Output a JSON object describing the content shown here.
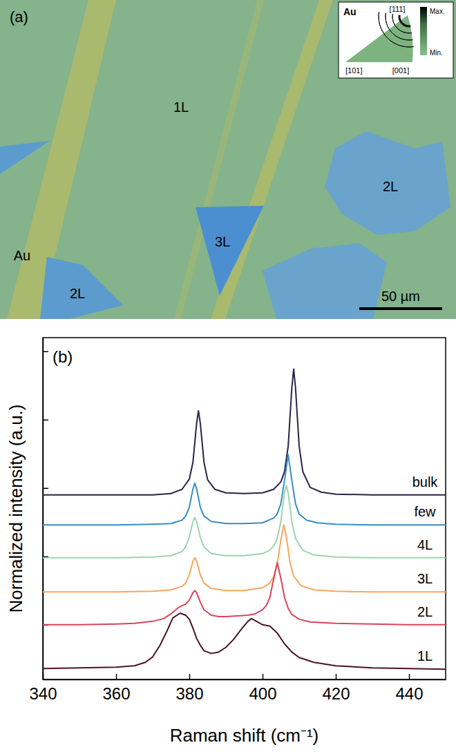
{
  "image_panel": {
    "panel_label": "(a)",
    "region_labels": [
      "1L",
      "2L",
      "3L",
      "Au",
      "2L"
    ],
    "scale_bar": "50 µm",
    "inset": {
      "material": "Au",
      "poles": [
        "[111]",
        "[101]",
        "[001]"
      ],
      "colorbar_labels": [
        "Max.",
        "Min."
      ]
    }
  },
  "chart_data": {
    "type": "line",
    "panel_label": "(b)",
    "x_label": "Raman shift (cm⁻¹)",
    "y_label": "Normalized intensity (a.u.)",
    "xlim": [
      340,
      450
    ],
    "xticks": [
      340,
      360,
      380,
      400,
      420,
      440
    ],
    "ylim": [
      -0.8,
      4.2
    ],
    "yticks": [
      0,
      1,
      2,
      3,
      4
    ],
    "tick_labels": "x",
    "series": [
      {
        "name": "bulk",
        "color": "#2a2346",
        "x": [
          340,
          350,
          360,
          370,
          375,
          378,
          380,
          381,
          382,
          382.5,
          383,
          384,
          385,
          387,
          390,
          395,
          400,
          403,
          405,
          406,
          407,
          408,
          408.5,
          409,
          410,
          411,
          413,
          416,
          420,
          430,
          440,
          450
        ],
        "values": [
          1.9,
          1.9,
          1.9,
          1.9,
          1.92,
          1.98,
          2.13,
          2.38,
          2.95,
          3.13,
          2.95,
          2.38,
          2.12,
          1.98,
          1.93,
          1.92,
          1.93,
          1.98,
          2.09,
          2.24,
          2.61,
          3.47,
          3.74,
          3.47,
          2.61,
          2.24,
          2.01,
          1.94,
          1.91,
          1.9,
          1.9,
          1.9
        ]
      },
      {
        "name": "few",
        "color": "#3a8cc5",
        "x": [
          340,
          350,
          360,
          370,
          375,
          378,
          379,
          380,
          381,
          381.5,
          382,
          383,
          384,
          386,
          390,
          395,
          400,
          403,
          404,
          405,
          406,
          407,
          408,
          409,
          410,
          412,
          415,
          420,
          430,
          440,
          450
        ],
        "values": [
          1.46,
          1.46,
          1.46,
          1.47,
          1.48,
          1.53,
          1.59,
          1.72,
          1.99,
          2.07,
          1.99,
          1.72,
          1.59,
          1.51,
          1.48,
          1.48,
          1.49,
          1.56,
          1.62,
          1.77,
          2.11,
          2.49,
          2.11,
          1.77,
          1.62,
          1.53,
          1.49,
          1.47,
          1.46,
          1.46,
          1.46
        ]
      },
      {
        "name": "4L",
        "color": "#9dd3b0",
        "x": [
          340,
          350,
          360,
          370,
          375,
          378,
          379,
          380,
          381,
          381.5,
          382,
          383,
          384,
          386,
          390,
          395,
          400,
          402,
          403,
          404,
          405,
          406,
          406.5,
          407,
          408,
          409,
          411,
          414,
          420,
          430,
          440,
          450
        ],
        "values": [
          0.98,
          0.98,
          0.98,
          0.99,
          1.01,
          1.07,
          1.14,
          1.28,
          1.51,
          1.57,
          1.51,
          1.28,
          1.14,
          1.04,
          1.01,
          1.01,
          1.04,
          1.09,
          1.15,
          1.26,
          1.51,
          1.93,
          2.04,
          1.93,
          1.51,
          1.26,
          1.09,
          1.02,
          0.99,
          0.98,
          0.98,
          0.98
        ]
      },
      {
        "name": "3L",
        "color": "#f7a65a",
        "x": [
          340,
          350,
          360,
          370,
          375,
          378,
          379,
          380,
          381,
          381.5,
          382,
          383,
          384,
          386,
          390,
          395,
          400,
          402,
          403,
          404,
          405,
          405.8,
          406.5,
          407.5,
          408.5,
          410.5,
          414,
          420,
          430,
          440,
          450
        ],
        "values": [
          0.48,
          0.48,
          0.48,
          0.49,
          0.51,
          0.56,
          0.61,
          0.73,
          0.93,
          0.98,
          0.93,
          0.73,
          0.61,
          0.53,
          0.5,
          0.5,
          0.54,
          0.61,
          0.7,
          0.88,
          1.24,
          1.46,
          1.29,
          0.91,
          0.71,
          0.57,
          0.51,
          0.49,
          0.48,
          0.48,
          0.48
        ]
      },
      {
        "name": "2L",
        "color": "#d9445a",
        "x": [
          340,
          350,
          360,
          365,
          370,
          373,
          375,
          377,
          378,
          379,
          380,
          381,
          381.5,
          382,
          383,
          384,
          386,
          388,
          390,
          393,
          396,
          398,
          400,
          401,
          402,
          403,
          404,
          405,
          406,
          407,
          408,
          410,
          413,
          420,
          430,
          440,
          450
        ],
        "values": [
          0,
          0,
          0.01,
          0.02,
          0.05,
          0.09,
          0.16,
          0.25,
          0.28,
          0.3,
          0.36,
          0.47,
          0.5,
          0.47,
          0.33,
          0.22,
          0.14,
          0.12,
          0.12,
          0.13,
          0.14,
          0.16,
          0.22,
          0.28,
          0.4,
          0.66,
          0.91,
          0.68,
          0.4,
          0.24,
          0.15,
          0.08,
          0.04,
          0.02,
          0.01,
          0,
          0
        ]
      },
      {
        "name": "1L",
        "color": "#4a1426",
        "x": [
          340,
          350,
          360,
          365,
          368,
          370,
          372,
          374,
          375.5,
          377.5,
          379,
          380,
          381,
          382,
          383,
          384,
          386,
          388,
          390,
          392,
          394,
          396,
          397,
          398,
          400,
          402,
          404,
          406,
          408,
          410,
          414,
          420,
          430,
          440,
          450
        ],
        "values": [
          -0.64,
          -0.63,
          -0.62,
          -0.6,
          -0.55,
          -0.47,
          -0.3,
          -0.08,
          0.1,
          0.17,
          0.14,
          0.08,
          -0.05,
          -0.2,
          -0.3,
          -0.38,
          -0.42,
          -0.4,
          -0.33,
          -0.22,
          -0.08,
          0.05,
          0.09,
          0.06,
          0,
          -0.02,
          -0.12,
          -0.28,
          -0.4,
          -0.48,
          -0.55,
          -0.6,
          -0.63,
          -0.64,
          -0.65
        ]
      }
    ]
  }
}
